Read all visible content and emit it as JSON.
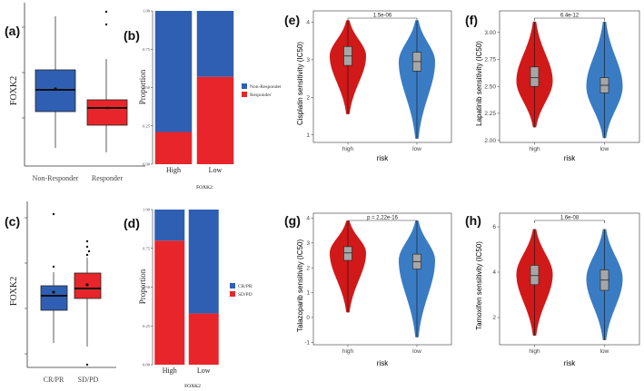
{
  "colors": {
    "blue": "#2f5fb3",
    "red": "#e8252a",
    "violin_red": "#d11919",
    "violin_blue": "#3a7cc4",
    "box_gray": "#a6a6a6"
  },
  "panels": {
    "a": {
      "label": "(a)",
      "chart_data": {
        "type": "box",
        "ylabel": "FOXK2",
        "categories": [
          "Non-Responder",
          "Responder"
        ],
        "colors": [
          "#2f5fb3",
          "#e8252a"
        ]
      }
    },
    "b": {
      "label": "(b)",
      "chart_data": {
        "type": "bar",
        "stacked": true,
        "ylabel": "Proportion",
        "xlabel": "FOXK2",
        "categories": [
          "High",
          "Low"
        ],
        "yticks": [
          "0.00",
          "0.25",
          "0.50",
          "0.75",
          "1.00"
        ],
        "ylim": [
          0,
          1
        ],
        "series": [
          {
            "name": "Responder",
            "values": [
              0.21,
              0.57
            ],
            "color": "#e8252a"
          },
          {
            "name": "Non-Responder",
            "values": [
              0.79,
              0.43
            ],
            "color": "#2f5fb3"
          }
        ],
        "legend": [
          "Non-Responder",
          "Responder"
        ]
      }
    },
    "c": {
      "label": "(c)",
      "chart_data": {
        "type": "box",
        "ylabel": "FOXK2",
        "categories": [
          "CR/PR",
          "SD/PD"
        ],
        "colors": [
          "#2f5fb3",
          "#e8252a"
        ]
      }
    },
    "d": {
      "label": "(d)",
      "chart_data": {
        "type": "bar",
        "stacked": true,
        "ylabel": "Proportion",
        "xlabel": "FOXK2",
        "categories": [
          "High",
          "Low"
        ],
        "yticks": [
          "0.00",
          "0.25",
          "0.50",
          "0.75",
          "1.00"
        ],
        "ylim": [
          0,
          1
        ],
        "series": [
          {
            "name": "SD/PD",
            "values": [
              0.8,
              0.33
            ],
            "color": "#e8252a"
          },
          {
            "name": "CR/PR",
            "values": [
              0.2,
              0.67
            ],
            "color": "#2f5fb3"
          }
        ],
        "legend": [
          "CR/PR",
          "SD/PD"
        ]
      }
    },
    "e": {
      "label": "(e)",
      "chart_data": {
        "type": "violin",
        "ylabel": "Cisplatin sensitivity (IC50)",
        "xlabel": "risk",
        "categories": [
          "high",
          "low"
        ],
        "yticks": [
          "1",
          "2",
          "3",
          "4"
        ],
        "ylim": [
          0.8,
          4.3
        ],
        "annotation": "1.5e-06",
        "groups": [
          {
            "name": "high",
            "min": 1.55,
            "max": 4.05,
            "q1": 2.85,
            "median": 3.1,
            "q3": 3.35,
            "mode": 3.1
          },
          {
            "name": "low",
            "min": 0.9,
            "max": 4.05,
            "q1": 2.7,
            "median": 2.95,
            "q3": 3.2,
            "mode": 2.95
          }
        ]
      }
    },
    "f": {
      "label": "(f)",
      "chart_data": {
        "type": "violin",
        "ylabel": "Lapatinib sensitivity (IC50)",
        "xlabel": "risk",
        "categories": [
          "high",
          "low"
        ],
        "yticks": [
          "2.00",
          "2.25",
          "2.50",
          "2.75",
          "3.00"
        ],
        "ylim": [
          1.98,
          3.2
        ],
        "annotation": "6.4e-12",
        "groups": [
          {
            "name": "high",
            "min": 2.12,
            "max": 3.1,
            "q1": 2.5,
            "median": 2.58,
            "q3": 2.68,
            "mode": 2.55
          },
          {
            "name": "low",
            "min": 2.02,
            "max": 3.1,
            "q1": 2.44,
            "median": 2.51,
            "q3": 2.58,
            "mode": 2.5
          }
        ]
      }
    },
    "g": {
      "label": "(g)",
      "chart_data": {
        "type": "violin",
        "ylabel": "Talazoparib sensitivity (IC50)",
        "xlabel": "risk",
        "categories": [
          "high",
          "low"
        ],
        "yticks": [
          "-1",
          "0",
          "1",
          "2",
          "3",
          "4"
        ],
        "ylim": [
          -1.1,
          4.2
        ],
        "annotation": "p = 2.22e-16",
        "groups": [
          {
            "name": "high",
            "min": 0.2,
            "max": 3.9,
            "q1": 2.3,
            "median": 2.6,
            "q3": 2.85,
            "mode": 2.6
          },
          {
            "name": "low",
            "min": -0.8,
            "max": 3.9,
            "q1": 1.95,
            "median": 2.25,
            "q3": 2.55,
            "mode": 2.3
          }
        ]
      }
    },
    "h": {
      "label": "(h)",
      "chart_data": {
        "type": "violin",
        "ylabel": "Tamoxifen sensitivity (IC50)",
        "xlabel": "risk",
        "categories": [
          "high",
          "low"
        ],
        "yticks": [
          "2",
          "4",
          "6"
        ],
        "ylim": [
          0.8,
          6.6
        ],
        "annotation": "1.6e-08",
        "groups": [
          {
            "name": "high",
            "min": 1.2,
            "max": 5.9,
            "q1": 3.45,
            "median": 3.85,
            "q3": 4.3,
            "mode": 3.9
          },
          {
            "name": "low",
            "min": 1.0,
            "max": 5.9,
            "q1": 3.2,
            "median": 3.65,
            "q3": 4.1,
            "mode": 3.7
          }
        ]
      }
    }
  }
}
